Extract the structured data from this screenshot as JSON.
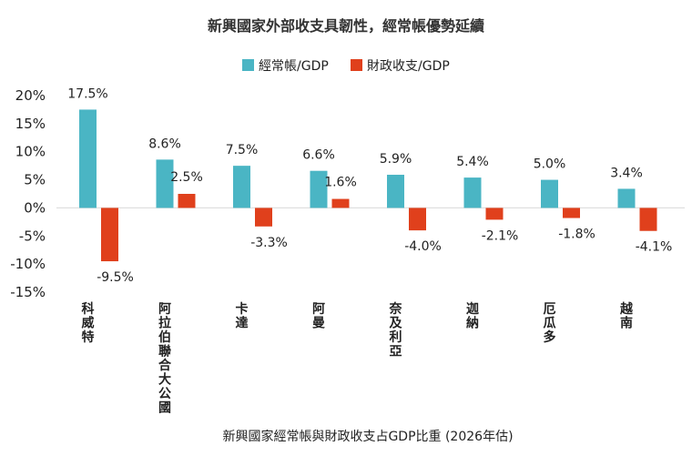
{
  "chart_data": {
    "type": "bar",
    "title": "新興國家外部收支具韌性，經常帳優勢延續",
    "footer": "新興國家經常帳與財政收支占GDP比重 (2026年估)",
    "categories": [
      "科威特",
      "阿拉伯聯合大公國",
      "卡達",
      "阿曼",
      "奈及利亞",
      "迦納",
      "厄瓜多",
      "越南"
    ],
    "series": [
      {
        "name": "經常帳/GDP",
        "color": "#4ab5c4",
        "values": [
          17.5,
          8.6,
          7.5,
          6.6,
          5.9,
          5.4,
          5.0,
          3.4
        ],
        "labels": [
          "17.5%",
          "8.6%",
          "7.5%",
          "6.6%",
          "5.9%",
          "5.4%",
          "5.0%",
          "3.4%"
        ]
      },
      {
        "name": "財政收支/GDP",
        "color": "#e0401c",
        "values": [
          -9.5,
          2.5,
          -3.3,
          1.6,
          -4.0,
          -2.1,
          -1.8,
          -4.1
        ],
        "labels": [
          "-9.5%",
          "2.5%",
          "-3.3%",
          "1.6%",
          "-4.0%",
          "-2.1%",
          "-1.8%",
          "-4.1%"
        ]
      }
    ],
    "ylim": [
      -15,
      20
    ],
    "yticks": [
      20,
      15,
      10,
      5,
      0,
      -5,
      -10,
      -15
    ],
    "ytick_labels": [
      "20%",
      "15%",
      "10%",
      "5%",
      "0%",
      "-5%",
      "-10%",
      "-15%"
    ],
    "legend": "top-center",
    "grid": false
  }
}
